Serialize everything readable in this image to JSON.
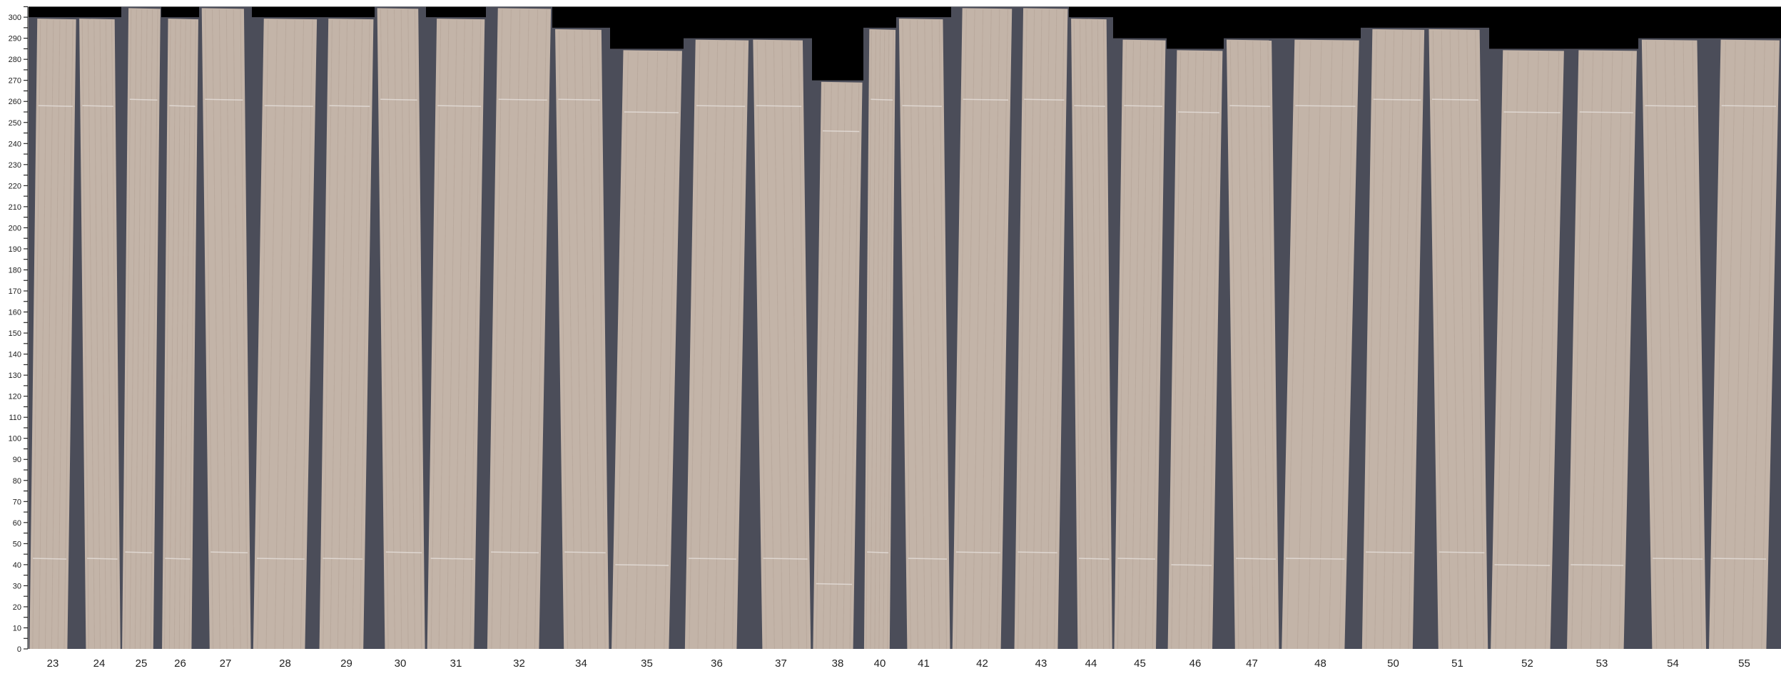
{
  "viewer": {
    "y_axis": {
      "min": 0,
      "max": 300,
      "major_step": 10,
      "minor_step": 5
    },
    "colors": {
      "background": "#000000",
      "panel": "#4b4d59",
      "wood": "#c3b4a8",
      "marker_line": "#e6e0dc"
    },
    "panels": [
      {
        "label": "23",
        "height": 300
      },
      {
        "label": "24",
        "height": 300
      },
      {
        "label": "25",
        "height": 305
      },
      {
        "label": "26",
        "height": 300
      },
      {
        "label": "27",
        "height": 305
      },
      {
        "label": "28",
        "height": 300
      },
      {
        "label": "29",
        "height": 300
      },
      {
        "label": "30",
        "height": 305
      },
      {
        "label": "31",
        "height": 300
      },
      {
        "label": "32",
        "height": 305
      },
      {
        "label": "34",
        "height": 295
      },
      {
        "label": "35",
        "height": 285
      },
      {
        "label": "36",
        "height": 290
      },
      {
        "label": "37",
        "height": 290
      },
      {
        "label": "38",
        "height": 270
      },
      {
        "label": "40",
        "height": 295
      },
      {
        "label": "41",
        "height": 300
      },
      {
        "label": "42",
        "height": 305
      },
      {
        "label": "43",
        "height": 305
      },
      {
        "label": "44",
        "height": 300
      },
      {
        "label": "45",
        "height": 290
      },
      {
        "label": "46",
        "height": 285
      },
      {
        "label": "47",
        "height": 290
      },
      {
        "label": "48",
        "height": 290
      },
      {
        "label": "50",
        "height": 295
      },
      {
        "label": "51",
        "height": 295
      },
      {
        "label": "52",
        "height": 285
      },
      {
        "label": "53",
        "height": 285
      },
      {
        "label": "54",
        "height": 290
      },
      {
        "label": "55",
        "height": 290
      }
    ]
  }
}
